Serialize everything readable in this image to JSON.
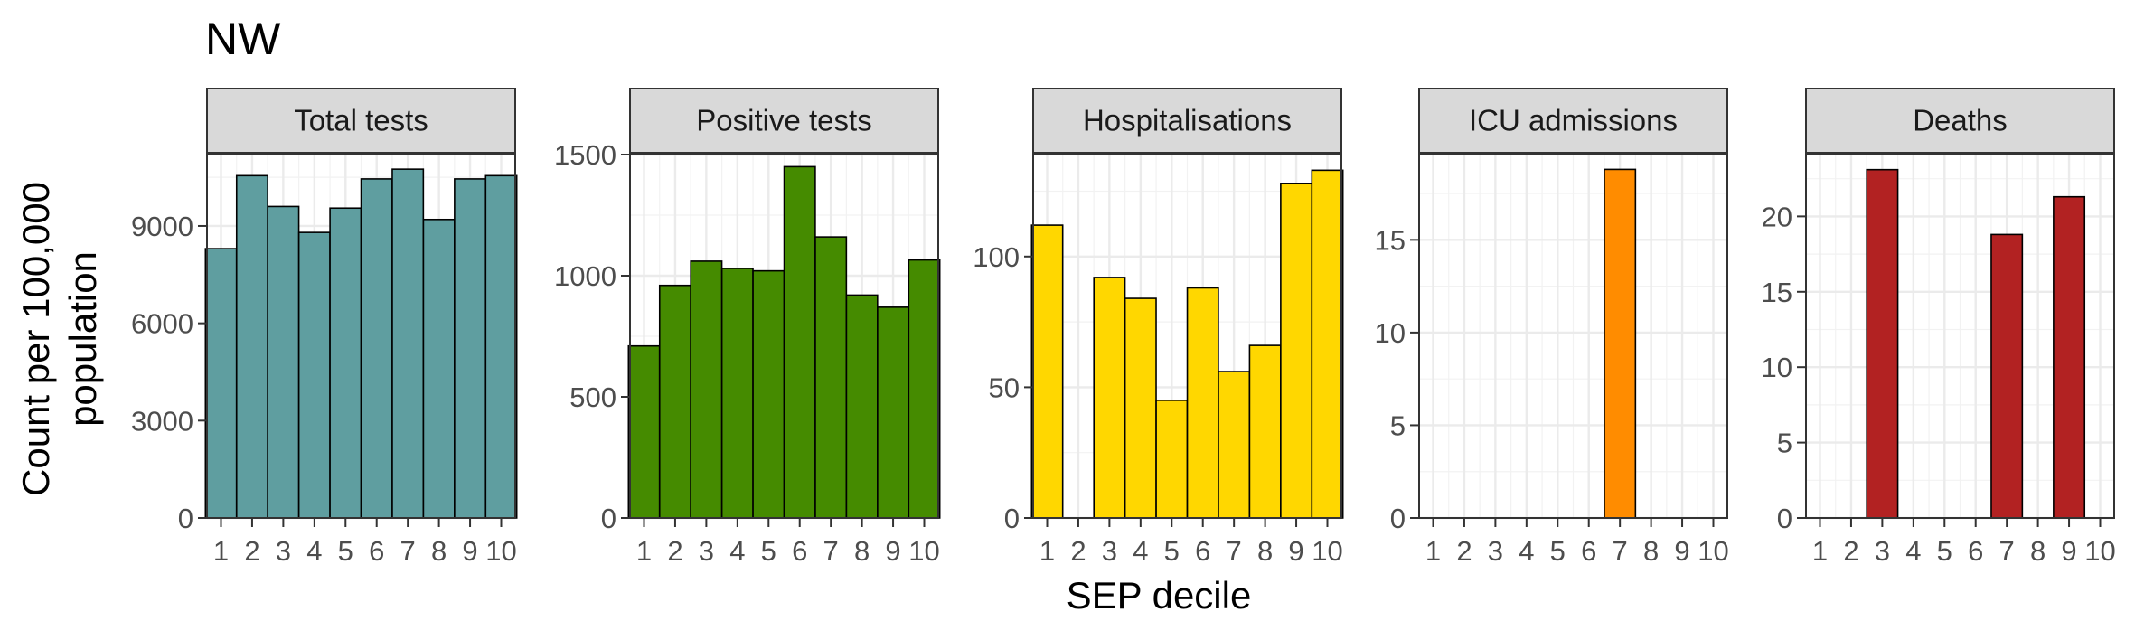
{
  "title": "NW",
  "xlabel": "SEP decile",
  "ylabel_lines": [
    "Count per 100,000",
    "population"
  ],
  "chart_data": [
    {
      "type": "bar",
      "panel": "Total tests",
      "categories": [
        "1",
        "2",
        "3",
        "4",
        "5",
        "6",
        "7",
        "8",
        "9",
        "10"
      ],
      "values": [
        8300,
        10550,
        9600,
        8800,
        9550,
        10450,
        10750,
        9200,
        10450,
        10550
      ],
      "ylim": [
        0,
        11200
      ],
      "yticks": [
        0,
        3000,
        6000,
        9000
      ],
      "fill": "#5f9ea0"
    },
    {
      "type": "bar",
      "panel": "Positive tests",
      "categories": [
        "1",
        "2",
        "3",
        "4",
        "5",
        "6",
        "7",
        "8",
        "9",
        "10"
      ],
      "values": [
        710,
        960,
        1060,
        1030,
        1020,
        1450,
        1160,
        920,
        870,
        1065
      ],
      "ylim": [
        0,
        1500
      ],
      "yticks": [
        0,
        500,
        1000,
        1500
      ],
      "fill": "#458b00"
    },
    {
      "type": "bar",
      "panel": "Hospitalisations",
      "categories": [
        "1",
        "2",
        "3",
        "4",
        "5",
        "6",
        "7",
        "8",
        "9",
        "10"
      ],
      "values": [
        112,
        0,
        92,
        84,
        45,
        88,
        56,
        66,
        128,
        133
      ],
      "ylim": [
        0,
        139
      ],
      "yticks": [
        0,
        50,
        100
      ],
      "fill": "#ffd700"
    },
    {
      "type": "bar",
      "panel": "ICU admissions",
      "categories": [
        "1",
        "2",
        "3",
        "4",
        "5",
        "6",
        "7",
        "8",
        "9",
        "10"
      ],
      "values": [
        0,
        0,
        0,
        0,
        0,
        0,
        18.8,
        0,
        0,
        0
      ],
      "ylim": [
        0,
        19.6
      ],
      "yticks": [
        0,
        5,
        10,
        15
      ],
      "fill": "#ff8c00"
    },
    {
      "type": "bar",
      "panel": "Deaths",
      "categories": [
        "1",
        "2",
        "3",
        "4",
        "5",
        "6",
        "7",
        "8",
        "9",
        "10"
      ],
      "values": [
        0,
        0,
        23.1,
        0,
        0,
        0,
        18.8,
        0,
        21.3,
        0
      ],
      "ylim": [
        0,
        24.1
      ],
      "yticks": [
        0,
        5,
        10,
        15,
        20
      ],
      "fill": "#b22222"
    }
  ]
}
